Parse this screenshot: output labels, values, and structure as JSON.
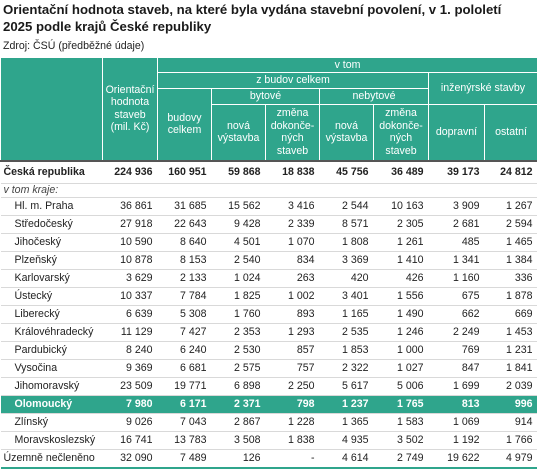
{
  "title": "Orientační hodnota staveb, na které byla vydána stavební povolení, v 1. pololetí 2025 podle krajů České republiky",
  "source": "Zdroj: ČSÚ (předběžné údaje)",
  "header": {
    "orient": "Orientační\nhodnota\nstaveb\n(mil. Kč)",
    "v_tom": "v tom",
    "z_budov": "z budov celkem",
    "budovy": "budovy\ncelkem",
    "bytove": "bytové",
    "nebytove": "nebytové",
    "inzen": "inženýrské stavby",
    "nova1": "nová\nvýstavba",
    "zmena1": "změna\ndokonče-\nných\nstaveb",
    "nova2": "nová\nvýstavba",
    "zmena2": "změna\ndokonče-\nných\nstaveb",
    "dopravni": "dopravní",
    "ostatni": "ostatní"
  },
  "total_row": {
    "name": "Česká republika",
    "cells": [
      "224 936",
      "160 951",
      "59 868",
      "18 838",
      "45 756",
      "36 489",
      "39 173",
      "24 812"
    ]
  },
  "subheader": "v tom kraje:",
  "rows": [
    {
      "name": "Hl. m. Praha",
      "cells": [
        "36 861",
        "31 685",
        "15 562",
        "3 416",
        "2 544",
        "10 163",
        "3 909",
        "1 267"
      ]
    },
    {
      "name": "Středočeský",
      "cells": [
        "27 918",
        "22 643",
        "9 428",
        "2 339",
        "8 571",
        "2 305",
        "2 681",
        "2 594"
      ]
    },
    {
      "name": "Jihočeský",
      "cells": [
        "10 590",
        "8 640",
        "4 501",
        "1 070",
        "1 808",
        "1 261",
        "485",
        "1 465"
      ]
    },
    {
      "name": "Plzeňský",
      "cells": [
        "10 878",
        "8 153",
        "2 540",
        "834",
        "3 369",
        "1 410",
        "1 341",
        "1 384"
      ]
    },
    {
      "name": "Karlovarský",
      "cells": [
        "3 629",
        "2 133",
        "1 024",
        "263",
        "420",
        "426",
        "1 160",
        "336"
      ]
    },
    {
      "name": "Ústecký",
      "cells": [
        "10 337",
        "7 784",
        "1 825",
        "1 002",
        "3 401",
        "1 556",
        "675",
        "1 878"
      ]
    },
    {
      "name": "Liberecký",
      "cells": [
        "6 639",
        "5 308",
        "1 760",
        "893",
        "1 165",
        "1 490",
        "662",
        "669"
      ]
    },
    {
      "name": "Královéhradecký",
      "cells": [
        "11 129",
        "7 427",
        "2 353",
        "1 293",
        "2 535",
        "1 246",
        "2 249",
        "1 453"
      ]
    },
    {
      "name": "Pardubický",
      "cells": [
        "8 240",
        "6 240",
        "2 530",
        "857",
        "1 853",
        "1 000",
        "769",
        "1 231"
      ]
    },
    {
      "name": "Vysočina",
      "cells": [
        "9 369",
        "6 681",
        "2 575",
        "757",
        "2 322",
        "1 027",
        "847",
        "1 841"
      ]
    },
    {
      "name": "Jihomoravský",
      "cells": [
        "23 509",
        "19 771",
        "6 898",
        "2 250",
        "5 617",
        "5 006",
        "1 699",
        "2 039"
      ]
    },
    {
      "name": "Olomoucký",
      "cells": [
        "7 980",
        "6 171",
        "2 371",
        "798",
        "1 237",
        "1 765",
        "813",
        "996"
      ],
      "highlight": true
    },
    {
      "name": "Zlínský",
      "cells": [
        "9 026",
        "7 043",
        "2 867",
        "1 228",
        "1 365",
        "1 583",
        "1 069",
        "914"
      ]
    },
    {
      "name": "Moravskoslezský",
      "cells": [
        "16 741",
        "13 783",
        "3 508",
        "1 838",
        "4 935",
        "3 502",
        "1 192",
        "1 766"
      ]
    }
  ],
  "last_row": {
    "name": "Územně nečleněno",
    "cells": [
      "32 090",
      "7 489",
      "126",
      "-",
      "4 614",
      "2 749",
      "19 622",
      "4 979"
    ]
  }
}
